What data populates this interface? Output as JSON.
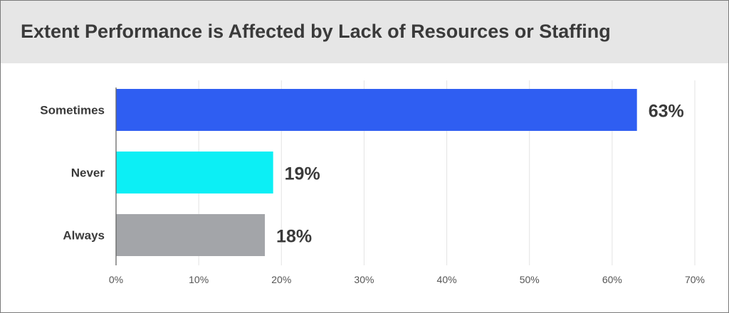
{
  "chart_data": {
    "type": "bar",
    "orientation": "horizontal",
    "title": "Extent Performance is Affected by Lack of Resources or Staffing",
    "categories": [
      "Sometimes",
      "Never",
      "Always"
    ],
    "values": [
      63,
      19,
      18
    ],
    "data_labels": [
      "63%",
      "19%",
      "18%"
    ],
    "bar_colors": [
      "#2f5ef2",
      "#0ceff5",
      "#a3a5a9"
    ],
    "xlim": [
      0,
      70
    ],
    "x_ticks": [
      0,
      10,
      20,
      30,
      40,
      50,
      60,
      70
    ],
    "x_tick_labels": [
      "0%",
      "10%",
      "20%",
      "30%",
      "40%",
      "50%",
      "60%",
      "70%"
    ],
    "grid": true,
    "legend": "none",
    "xlabel": "",
    "ylabel": ""
  },
  "colors": {
    "title_background": "#e6e6e6",
    "title_text": "#3a3a3a",
    "label_text": "#3a3a3a",
    "tick_text": "#555555",
    "gridline": "#e3e3e3",
    "axis_line": "#666666"
  }
}
